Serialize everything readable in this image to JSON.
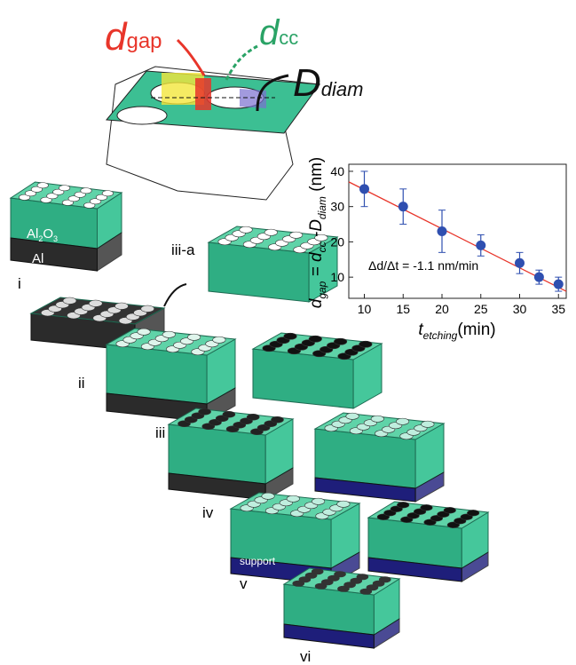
{
  "chart_data": {
    "type": "scatter",
    "x": [
      10,
      15,
      20,
      25,
      30,
      32.5,
      35
    ],
    "series": [
      {
        "color": "#2f4fb0",
        "values": [
          35,
          30,
          23,
          19,
          14,
          10,
          8
        ],
        "errors": [
          5,
          5,
          6,
          3,
          3,
          2,
          2
        ]
      }
    ],
    "fit": {
      "color": "#e8352a",
      "x": [
        8,
        36
      ],
      "values": [
        37,
        6
      ]
    },
    "xlim": [
      8,
      36
    ],
    "ylim": [
      4,
      42
    ],
    "xticks": [
      10,
      15,
      20,
      25,
      30,
      35
    ],
    "yticks": [
      10,
      20,
      30,
      40
    ],
    "xlabel": [
      "t",
      "etching",
      "(min)"
    ],
    "ylabel": [
      "d",
      "gap",
      " = d",
      "cc",
      " -D",
      "diam",
      " (nm)"
    ],
    "annotation": "Δd/Δt = -1.1 nm/min"
  },
  "schematic": {
    "d_gap": [
      "d",
      "gap"
    ],
    "d_cc": [
      "d",
      "cc"
    ],
    "D_diam": [
      "D",
      "diam"
    ]
  },
  "labels": {
    "al2o3": [
      "Al",
      "2",
      "O",
      "3"
    ],
    "al": "Al",
    "support": "support",
    "steps": [
      "i",
      "ii",
      "iii-a",
      "iii",
      "iv",
      "v",
      "vi"
    ]
  }
}
